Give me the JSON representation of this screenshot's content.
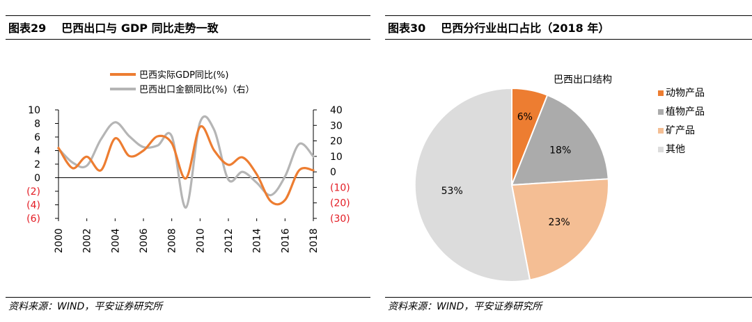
{
  "left": {
    "figure_number": "图表29",
    "figure_title": "巴西出口与 GDP 同比走势一致",
    "source": "资料来源：WIND，平安证券研究所"
  },
  "right": {
    "figure_number": "图表30",
    "figure_title": "巴西分行业出口占比（2018 年）",
    "source": "资料来源：WIND，平安证券研究所"
  },
  "colors": {
    "orange": "#ED7D31",
    "gray": "#B5B5B5",
    "peach": "#F4BE94",
    "light": "#DCDCDC",
    "red": "#E31B23"
  },
  "chart_data": [
    {
      "type": "line",
      "title": "",
      "x": [
        2000,
        2001,
        2002,
        2003,
        2004,
        2005,
        2006,
        2007,
        2008,
        2009,
        2010,
        2011,
        2012,
        2013,
        2014,
        2015,
        2016,
        2017,
        2018
      ],
      "xticks": [
        2000,
        2002,
        2004,
        2006,
        2008,
        2010,
        2012,
        2014,
        2016,
        2018
      ],
      "series": [
        {
          "name": "巴西实际GDP同比(%)",
          "axis": "left",
          "values": [
            4.4,
            1.4,
            3.1,
            1.1,
            5.8,
            3.2,
            4.0,
            6.1,
            5.1,
            -0.1,
            7.5,
            4.0,
            1.9,
            3.0,
            0.5,
            -3.5,
            -3.3,
            1.1,
            1.1
          ]
        },
        {
          "name": "巴西出口金额同比(%)（右）",
          "axis": "right",
          "values": [
            15,
            6,
            4,
            21,
            32,
            23,
            16,
            17,
            23,
            -23,
            32,
            27,
            -5,
            0,
            -7,
            -15,
            -3,
            18,
            10
          ]
        }
      ],
      "ylim_left": [
        -6,
        10
      ],
      "yticks_left": [
        "10",
        "8",
        "6",
        "4",
        "2",
        "0",
        "(2)",
        "(4)",
        "(6)"
      ],
      "ylim_right": [
        -30,
        40
      ],
      "yticks_right": [
        "40",
        "30",
        "20",
        "10",
        "0",
        "(10)",
        "(20)",
        "(30)"
      ],
      "legend_position": "top"
    },
    {
      "type": "pie",
      "title": "巴西出口结构",
      "labels": [
        "动物产品",
        "植物产品",
        "矿产品",
        "其他"
      ],
      "values": [
        6,
        18,
        23,
        53
      ],
      "value_labels": [
        "6%",
        "18%",
        "23%",
        "53%"
      ],
      "colors": [
        "#ED7D31",
        "#ABABAB",
        "#F4BE94",
        "#DCDCDC"
      ],
      "legend_position": "right"
    }
  ]
}
